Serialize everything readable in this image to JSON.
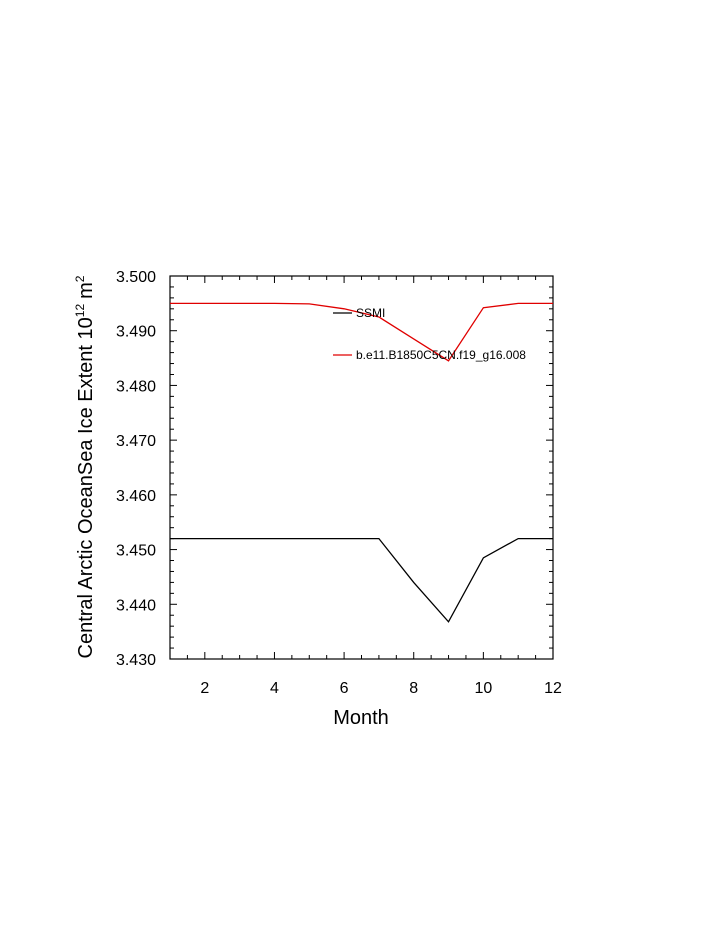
{
  "chart_data": {
    "type": "line",
    "title": "",
    "xlabel": "Month",
    "ylabel": "Central Arctic OceanSea Ice Extent 10",
    "ylabel_exponent": "12",
    "ylabel_unit": "m",
    "ylabel_unit_exponent": "2",
    "xlim": [
      1,
      12
    ],
    "ylim": [
      3.43,
      3.5
    ],
    "x_ticks": [
      2,
      4,
      6,
      8,
      10,
      12
    ],
    "y_ticks": [
      3.43,
      3.44,
      3.45,
      3.46,
      3.47,
      3.48,
      3.49,
      3.5
    ],
    "x_tick_labels": [
      "2",
      "4",
      "6",
      "8",
      "10",
      "12"
    ],
    "y_tick_labels": [
      "3.430",
      "3.440",
      "3.450",
      "3.460",
      "3.470",
      "3.480",
      "3.490",
      "3.500"
    ],
    "grid": false,
    "legend_position": "top-center inside plot",
    "x": [
      1,
      2,
      3,
      4,
      5,
      6,
      7,
      8,
      9,
      10,
      11,
      12
    ],
    "series": [
      {
        "name": "SSMI",
        "color": "#000000",
        "values": [
          3.452,
          3.452,
          3.452,
          3.452,
          3.452,
          3.452,
          3.452,
          3.444,
          3.4368,
          3.4485,
          3.452,
          3.452
        ]
      },
      {
        "name": "b.e11.B1850C5CN.f19_g16.008",
        "color": "#e00000",
        "values": [
          3.495,
          3.495,
          3.495,
          3.495,
          3.4949,
          3.494,
          3.4925,
          3.4885,
          3.4845,
          3.4942,
          3.495,
          3.495
        ]
      }
    ]
  }
}
